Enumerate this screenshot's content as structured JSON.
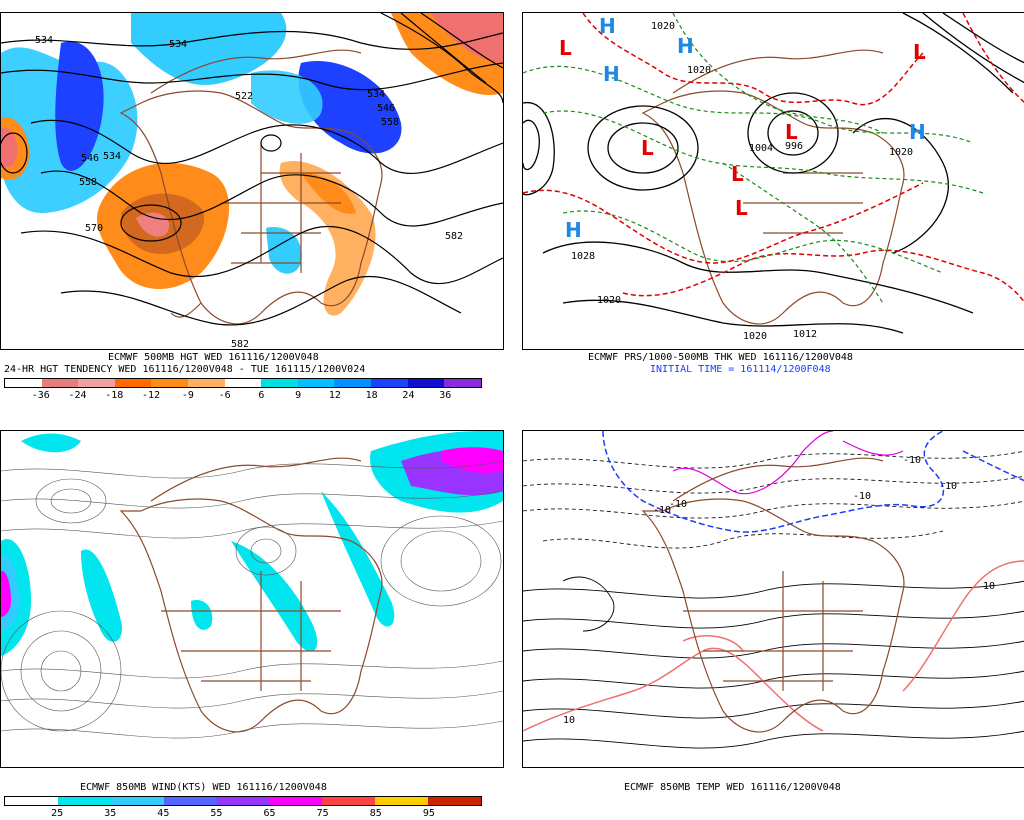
{
  "panels": {
    "hgt": {
      "caption1": "ECMWF 500MB HGT WED 161116/1200V048",
      "caption2": "24-HR HGT TENDENCY WED 161116/1200V048 - TUE 161115/1200V024",
      "scale_labels": [
        "-36",
        "-24",
        "-18",
        "-12",
        "-9",
        "-6",
        "6",
        "9",
        "12",
        "18",
        "24",
        "36"
      ],
      "scale_colors": [
        "#ffffff",
        "#e77c7c",
        "#f0a0a0",
        "#ff6a00",
        "#ff8c1a",
        "#ffb060",
        "#ffffff",
        "#00e0e0",
        "#00c0ff",
        "#0090ff",
        "#1e40ff",
        "#1010d0",
        "#8a2be2"
      ],
      "contour_labels": [
        "534",
        "534",
        "522",
        "534",
        "546",
        "558",
        "570",
        "582",
        "582",
        "534",
        "546",
        "558"
      ]
    },
    "prs": {
      "caption1": "ECMWF PRS/1000-500MB THK WED 161116/1200V048",
      "caption2": "INITIAL TIME = 161114/1200F048",
      "centers": [
        "L",
        "L",
        "L",
        "L",
        "L",
        "L",
        "H",
        "H",
        "H",
        "H",
        "H"
      ],
      "contour_labels": [
        "1020",
        "1020",
        "1028",
        "1020",
        "1004",
        "996",
        "1012",
        "1020",
        "1020"
      ]
    },
    "wind": {
      "caption1": "ECMWF 850MB WIND(KTS) WED 161116/1200V048",
      "scale_labels": [
        "25",
        "35",
        "45",
        "55",
        "65",
        "75",
        "85",
        "95"
      ],
      "scale_colors": [
        "#ffffff",
        "#00e5ee",
        "#33ccff",
        "#5566ff",
        "#9933ff",
        "#ff00ff",
        "#ff4444",
        "#ffcc00",
        "#cc2200"
      ]
    },
    "temp": {
      "caption1": "ECMWF 850MB TEMP WED 161116/1200V048",
      "contour_labels": [
        "-10",
        "-10",
        "-10",
        "-10",
        "10",
        "10",
        "-10"
      ]
    }
  },
  "colors": {
    "land": "#8b4a2b",
    "thk_red": "#e00000",
    "thk_green": "#1a8a1a",
    "blue": "#1a3cff",
    "magenta": "#e000e0",
    "pink": "#f07070"
  }
}
